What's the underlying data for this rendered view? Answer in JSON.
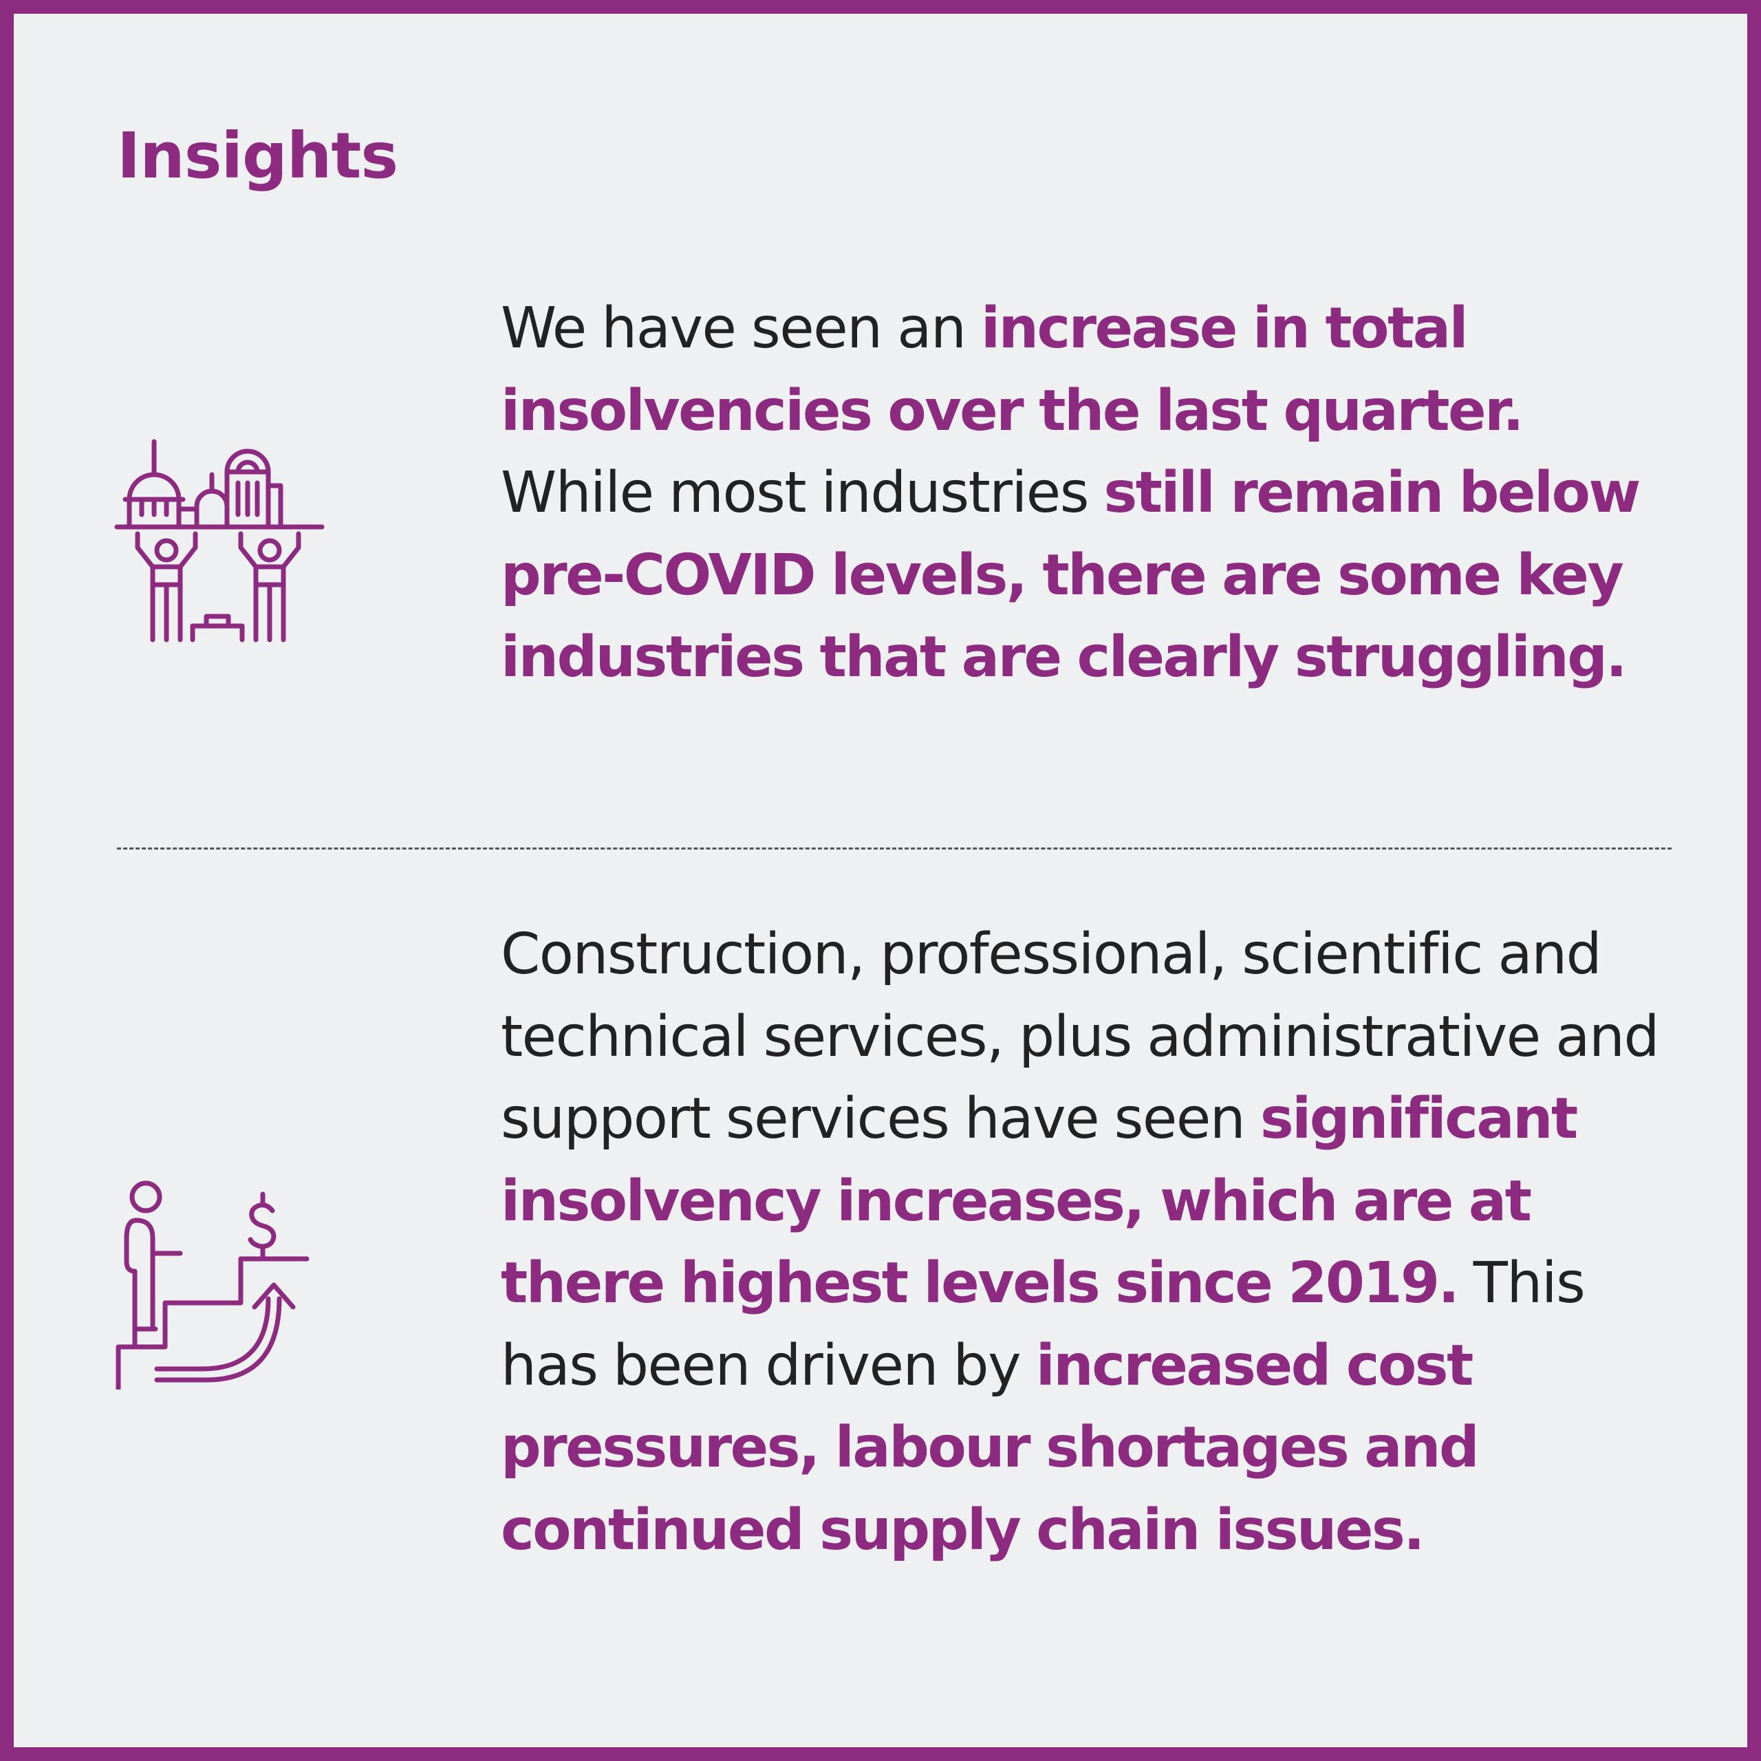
{
  "title": "Insights",
  "colors": {
    "accent": "#8c2b80",
    "background": "#eff0f2",
    "text": "#222222"
  },
  "items": [
    {
      "icon": "government-buildings-people-icon",
      "segments": [
        {
          "text": "We have seen an ",
          "highlight": false
        },
        {
          "text": "increase in total insolvencies over the last quarter.",
          "highlight": true
        },
        {
          "text": " While most industries ",
          "highlight": false
        },
        {
          "text": "still remain below pre-COVID levels, there are some key industries that are clearly struggling.",
          "highlight": true
        }
      ]
    },
    {
      "icon": "person-stairs-dollar-growth-icon",
      "segments": [
        {
          "text": "Construction, professional, scientific and technical services, plus administrative and support services have seen ",
          "highlight": false
        },
        {
          "text": "significant insolvency increases, which are at there highest levels since 2019.",
          "highlight": true
        },
        {
          "text": " This has been driven by ",
          "highlight": false
        },
        {
          "text": "increased cost pressures, labour shortages and continued supply chain issues.",
          "highlight": true
        }
      ]
    }
  ]
}
